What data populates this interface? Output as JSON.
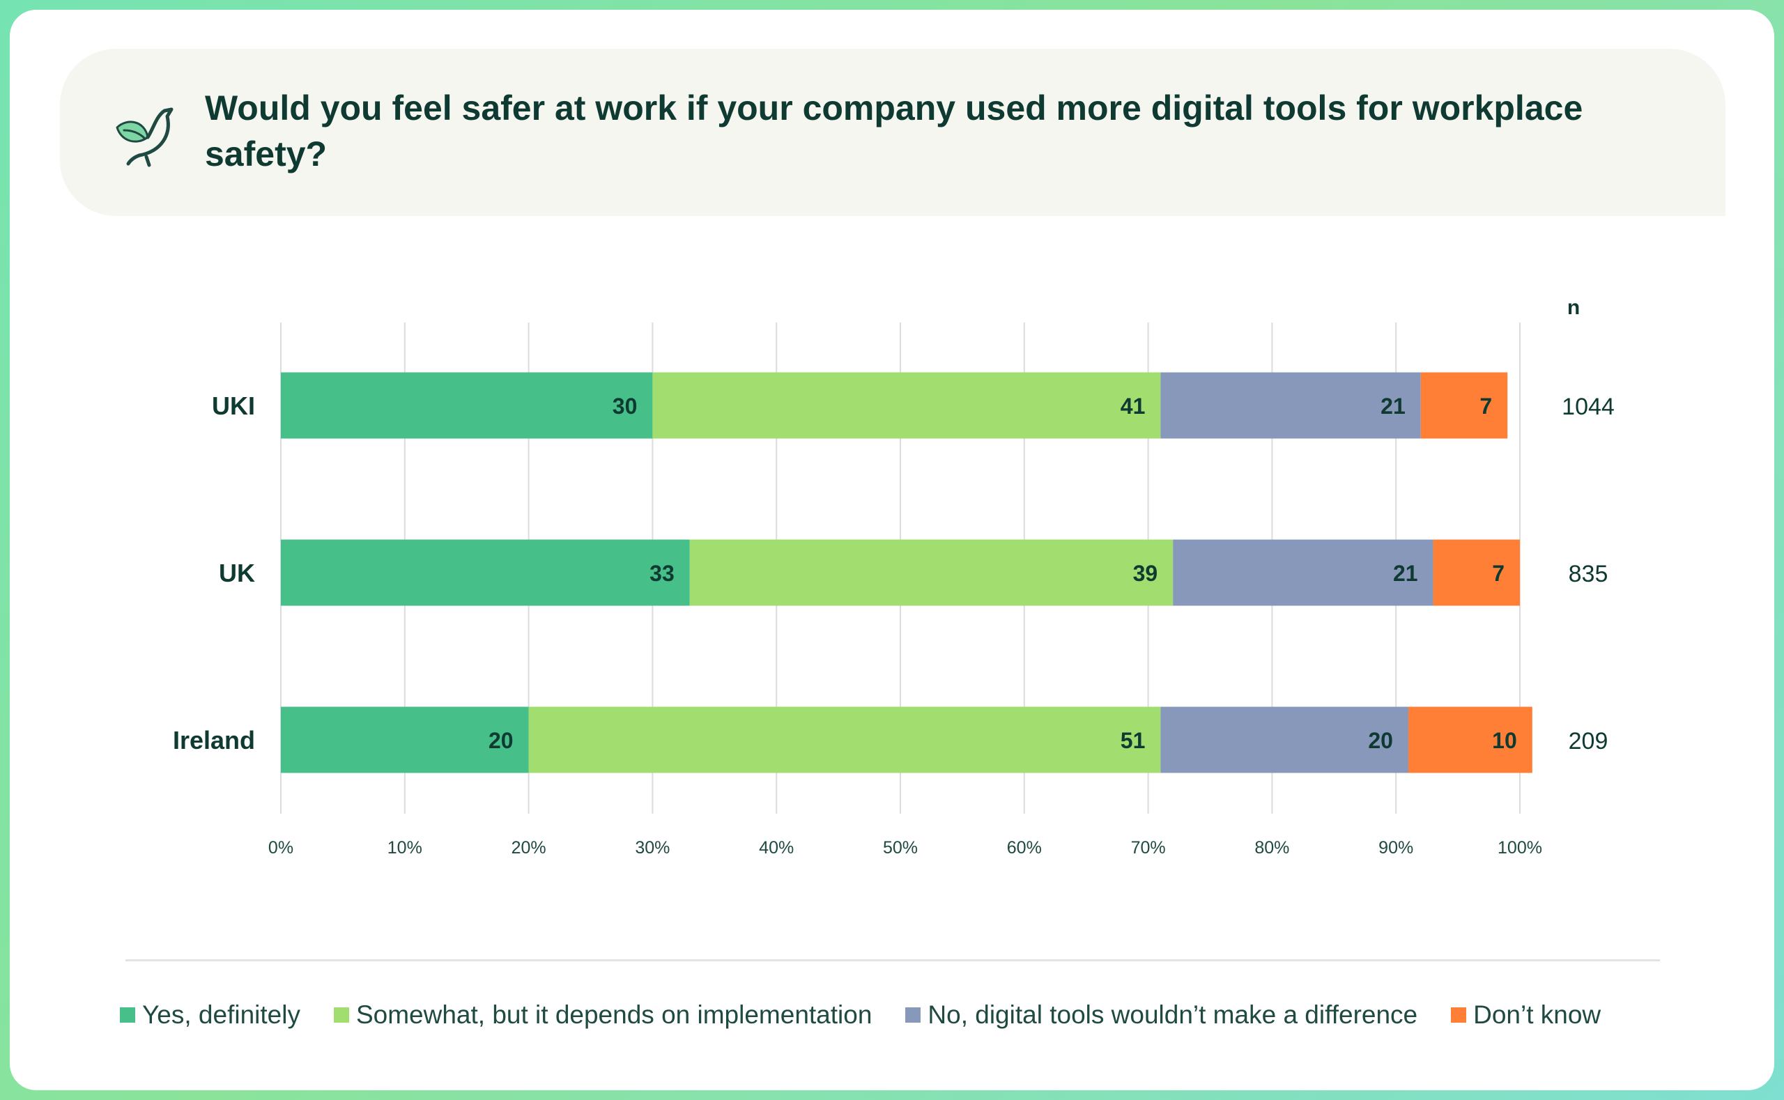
{
  "title": "Would you feel safer at work if your company used more digital tools for workplace safety?",
  "icon": "bird-logo-icon",
  "colors": {
    "yes": "#46bf88",
    "somewhat": "#a1de6f",
    "no": "#8898bb",
    "dont_know": "#ff7f36",
    "text_dark": "#0f3a32"
  },
  "chart_data": {
    "type": "bar",
    "orientation": "horizontal",
    "stacked": true,
    "categories": [
      "UKI",
      "UK",
      "Ireland"
    ],
    "series": [
      {
        "name": "Yes, definitely",
        "color": "#46bf88",
        "values": [
          30,
          33,
          20
        ],
        "labels": [
          "30",
          "33",
          "20"
        ]
      },
      {
        "name": "Somewhat, but it depends on implementation",
        "color": "#a1de6f",
        "values": [
          41,
          39,
          51
        ],
        "labels": [
          "41",
          "39",
          "51"
        ]
      },
      {
        "name": "No, digital tools wouldn’t make a difference",
        "color": "#8898bb",
        "values": [
          21,
          21,
          20
        ],
        "labels": [
          "21",
          "21",
          "20"
        ]
      },
      {
        "name": "Don’t know",
        "color": "#ff7f36",
        "values": [
          7,
          7,
          10
        ],
        "labels": [
          "7",
          "7",
          "10"
        ]
      }
    ],
    "xlim": [
      0,
      100
    ],
    "xticks": [
      "0%",
      "10%",
      "20%",
      "30%",
      "40%",
      "50%",
      "60%",
      "70%",
      "80%",
      "90%",
      "100%"
    ],
    "grid": true,
    "n_header": "n",
    "n_values": [
      "1044",
      "835",
      "209"
    ],
    "legend_position": "bottom"
  }
}
